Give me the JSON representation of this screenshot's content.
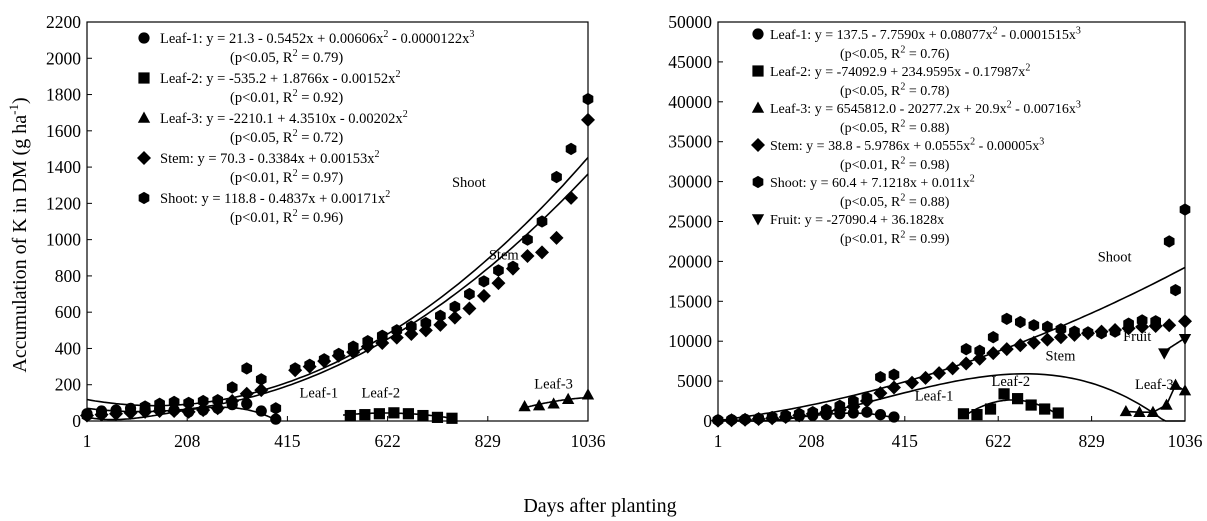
{
  "figure": {
    "shared_xlabel": "Days after planting",
    "shared_ylabel": "Accumulation of K in DM (g ha",
    "shared_ylabel_sup": "-1",
    "shared_ylabel_end": ")"
  },
  "chart_data": [
    {
      "type": "scatter",
      "xlim": [
        1,
        1036
      ],
      "ylim": [
        0,
        2200
      ],
      "xticks": [
        "1",
        "208",
        "415",
        "622",
        "829",
        "1036"
      ],
      "yticks": [
        "0",
        "200",
        "400",
        "600",
        "800",
        "1000",
        "1200",
        "1400",
        "1600",
        "1800",
        "2000",
        "2200"
      ],
      "grid": false,
      "legend_position": "top-left",
      "legend": [
        {
          "marker": "circle",
          "line1": "Leaf-1: y = 21.3 - 0.5452x + 0.00606x² - 0.0000122x³",
          "line2": "(p<0.05,  R² = 0.79)"
        },
        {
          "marker": "square",
          "line1": "Leaf-2: y = -535.2 + 1.8766x - 0.00152x²",
          "line2": "(p<0.01, R² = 0.92)"
        },
        {
          "marker": "triangle",
          "line1": "Leaf-3: y = -2210.1 + 4.3510x - 0.00202x²",
          "line2": "(p<0.05, R² = 0.72)"
        },
        {
          "marker": "diamond",
          "line1": "Stem: y = 70.3 - 0.3384x + 0.00153x²",
          "line2": "(p<0.01, R² = 0.97)"
        },
        {
          "marker": "hexagon",
          "line1": "Shoot: y = 118.8 - 0.4837x + 0.00171x²",
          "line2": "(p<0.01, R² = 0.96)"
        }
      ],
      "annotations": [
        {
          "text": "Shoot",
          "x": 790,
          "y": 1290
        },
        {
          "text": "Stem",
          "x": 862,
          "y": 890
        },
        {
          "text": "Leaf-1",
          "x": 480,
          "y": 130
        },
        {
          "text": "Leaf-2",
          "x": 608,
          "y": 130
        },
        {
          "text": "Leaf-3",
          "x": 965,
          "y": 180
        }
      ],
      "series": [
        {
          "marker": "circle",
          "x": [
            1,
            31,
            61,
            91,
            121,
            151,
            181,
            211,
            241,
            271,
            301,
            331,
            361,
            391
          ],
          "y": [
            40,
            55,
            60,
            70,
            65,
            70,
            60,
            50,
            60,
            70,
            90,
            95,
            55,
            10
          ]
        },
        {
          "marker": "square",
          "x": [
            545,
            575,
            605,
            635,
            665,
            695,
            725,
            755
          ],
          "y": [
            30,
            35,
            40,
            45,
            40,
            30,
            20,
            15
          ]
        },
        {
          "marker": "triangle",
          "x": [
            905,
            935,
            965,
            995,
            1036
          ],
          "y": [
            80,
            85,
            95,
            120,
            145
          ]
        },
        {
          "marker": "diamond",
          "x": [
            1,
            31,
            61,
            91,
            121,
            151,
            181,
            211,
            241,
            271,
            301,
            331,
            361,
            431,
            461,
            491,
            521,
            551,
            581,
            611,
            641,
            671,
            701,
            731,
            761,
            791,
            821,
            851,
            881,
            911,
            941,
            971,
            1001,
            1036
          ],
          "y": [
            30,
            35,
            40,
            45,
            50,
            55,
            55,
            50,
            60,
            70,
            110,
            150,
            170,
            280,
            300,
            330,
            360,
            380,
            410,
            430,
            460,
            480,
            500,
            530,
            570,
            620,
            690,
            760,
            840,
            910,
            930,
            1010,
            1230,
            1660
          ]
        },
        {
          "marker": "hexagon",
          "x": [
            1,
            31,
            61,
            91,
            121,
            151,
            181,
            211,
            241,
            271,
            301,
            331,
            361,
            391,
            431,
            461,
            491,
            521,
            551,
            581,
            611,
            641,
            671,
            701,
            731,
            761,
            791,
            821,
            851,
            881,
            911,
            941,
            971,
            1001,
            1036
          ],
          "y": [
            30,
            40,
            50,
            60,
            80,
            95,
            105,
            100,
            110,
            115,
            185,
            290,
            230,
            70,
            290,
            310,
            340,
            370,
            410,
            440,
            470,
            500,
            520,
            540,
            580,
            630,
            700,
            770,
            830,
            850,
            1000,
            1100,
            1345,
            1500,
            1775
          ]
        }
      ],
      "curves": [
        {
          "name": "Shoot",
          "coef": [
            118.8,
            -0.4837,
            0.00171
          ],
          "domain": [
            1,
            1036
          ]
        },
        {
          "name": "Stem",
          "coef": [
            70.3,
            -0.3384,
            0.00153
          ],
          "domain": [
            1,
            1036
          ]
        },
        {
          "name": "Leaf-1",
          "coef": [
            21.3,
            -0.5452,
            0.00606,
            -1.22e-05
          ],
          "domain": [
            1,
            400
          ]
        },
        {
          "name": "Leaf-2",
          "coef": [
            -535.2,
            1.8766,
            -0.00152
          ],
          "domain": [
            530,
            760
          ]
        },
        {
          "name": "Leaf-3",
          "coef": [
            -2210.1,
            4.351,
            -0.00202
          ],
          "domain": [
            895,
            1036
          ]
        }
      ]
    },
    {
      "type": "scatter",
      "xlim": [
        1,
        1036
      ],
      "ylim": [
        0,
        50000
      ],
      "xticks": [
        "1",
        "208",
        "415",
        "622",
        "829",
        "1036"
      ],
      "yticks": [
        "0",
        "5000",
        "10000",
        "15000",
        "20000",
        "25000",
        "30000",
        "35000",
        "40000",
        "45000",
        "50000"
      ],
      "grid": false,
      "legend_position": "top-left",
      "legend": [
        {
          "marker": "circle",
          "line1": "Leaf-1: y = 137.5 - 7.7590x + 0.08077x² - 0.0001515x³",
          "line2": "(p<0.05, R² = 0.76)"
        },
        {
          "marker": "square",
          "line1": "Leaf-2: y = -74092.9 + 234.9595x - 0.17987x²",
          "line2": "(p<0.05, R² = 0.78)"
        },
        {
          "marker": "triangle",
          "line1": "Leaf-3: y = 6545812.0 - 20277.2x + 20.9x² - 0.00716x³",
          "line2": "(p<0.05, R² = 0.88)"
        },
        {
          "marker": "diamond",
          "line1": "Stem: y = 38.8 - 5.9786x + 0.0555x² - 0.00005x³",
          "line2": "(p<0.01, R² = 0.98)"
        },
        {
          "marker": "hexagon",
          "line1": "Shoot: y = 60.4 + 7.1218x + 0.011x²",
          "line2": "(p<0.05, R² = 0.88)"
        },
        {
          "marker": "triangle-down",
          "line1": "Fruit: y = -27090.4 + 36.1828x",
          "line2": "(p<0.01, R² = 0.99)"
        }
      ],
      "annotations": [
        {
          "text": "Shoot",
          "x": 880,
          "y": 20000
        },
        {
          "text": "Stem",
          "x": 760,
          "y": 7600
        },
        {
          "text": "Fruit",
          "x": 930,
          "y": 10000
        },
        {
          "text": "Leaf-1",
          "x": 480,
          "y": 2600
        },
        {
          "text": "Leaf-2",
          "x": 650,
          "y": 4400
        },
        {
          "text": "Leaf-3",
          "x": 968,
          "y": 4000
        }
      ],
      "series": [
        {
          "marker": "circle",
          "x": [
            1,
            31,
            61,
            91,
            121,
            151,
            181,
            211,
            241,
            271,
            301,
            331,
            361,
            391
          ],
          "y": [
            100,
            150,
            200,
            300,
            400,
            500,
            600,
            700,
            800,
            900,
            1000,
            1100,
            800,
            500
          ]
        },
        {
          "marker": "square",
          "x": [
            545,
            575,
            605,
            635,
            665,
            695,
            725,
            755
          ],
          "y": [
            900,
            800,
            1500,
            3400,
            2800,
            2000,
            1500,
            1000
          ]
        },
        {
          "marker": "triangle",
          "x": [
            905,
            935,
            965,
            995,
            1015,
            1036
          ],
          "y": [
            1200,
            1100,
            1100,
            2000,
            4500,
            3800
          ]
        },
        {
          "marker": "diamond",
          "x": [
            1,
            31,
            61,
            91,
            121,
            151,
            181,
            211,
            241,
            271,
            301,
            331,
            361,
            391,
            431,
            461,
            491,
            521,
            551,
            581,
            611,
            641,
            671,
            701,
            731,
            761,
            791,
            821,
            851,
            881,
            911,
            941,
            971,
            1001,
            1036
          ],
          "y": [
            50,
            100,
            150,
            250,
            350,
            500,
            700,
            900,
            1100,
            1400,
            1800,
            2500,
            3500,
            4200,
            4800,
            5400,
            6000,
            6600,
            7200,
            7800,
            8500,
            9000,
            9500,
            9800,
            10200,
            10500,
            10800,
            11000,
            11200,
            11400,
            11600,
            11800,
            11900,
            12000,
            12500
          ]
        },
        {
          "marker": "hexagon",
          "x": [
            1,
            31,
            61,
            91,
            121,
            151,
            181,
            211,
            241,
            271,
            301,
            331,
            361,
            391,
            551,
            581,
            611,
            641,
            671,
            701,
            731,
            761,
            791,
            821,
            851,
            881,
            911,
            941,
            971,
            1001,
            1015,
            1036
          ],
          "y": [
            100,
            150,
            200,
            300,
            500,
            700,
            900,
            1100,
            1400,
            1900,
            2500,
            2900,
            5500,
            5800,
            9000,
            8800,
            10500,
            12800,
            12400,
            12000,
            11800,
            11500,
            11200,
            11100,
            11000,
            11200,
            12200,
            12600,
            12500,
            22500,
            16400,
            26500
          ]
        },
        {
          "marker": "triangle-down",
          "x": [
            990,
            1036
          ],
          "y": [
            8500,
            10300
          ]
        }
      ],
      "curves": [
        {
          "name": "Shoot",
          "coef": [
            60.4,
            7.1218,
            0.011
          ],
          "domain": [
            1,
            1036
          ]
        },
        {
          "name": "Stem",
          "coef": [
            38.8,
            -5.9786,
            0.0555,
            -5e-05
          ],
          "domain": [
            1,
            1036
          ]
        },
        {
          "name": "Leaf-1",
          "coef": [
            137.5,
            -7.759,
            0.08077,
            -0.0001515
          ],
          "domain": [
            1,
            400
          ]
        },
        {
          "name": "Leaf-2",
          "coef": [
            -74092.9,
            234.9595,
            -0.17987
          ],
          "domain": [
            545,
            760
          ]
        },
        {
          "name": "Fruit",
          "coef": [
            -27090.4,
            36.1828
          ],
          "domain": [
            990,
            1036
          ]
        },
        {
          "name": "Leaf-3",
          "points": [
            [
              905,
              1200
            ],
            [
              935,
              1100
            ],
            [
              965,
              1100
            ],
            [
              995,
              2000
            ],
            [
              1015,
              4500
            ],
            [
              1036,
              3800
            ]
          ]
        }
      ]
    }
  ]
}
